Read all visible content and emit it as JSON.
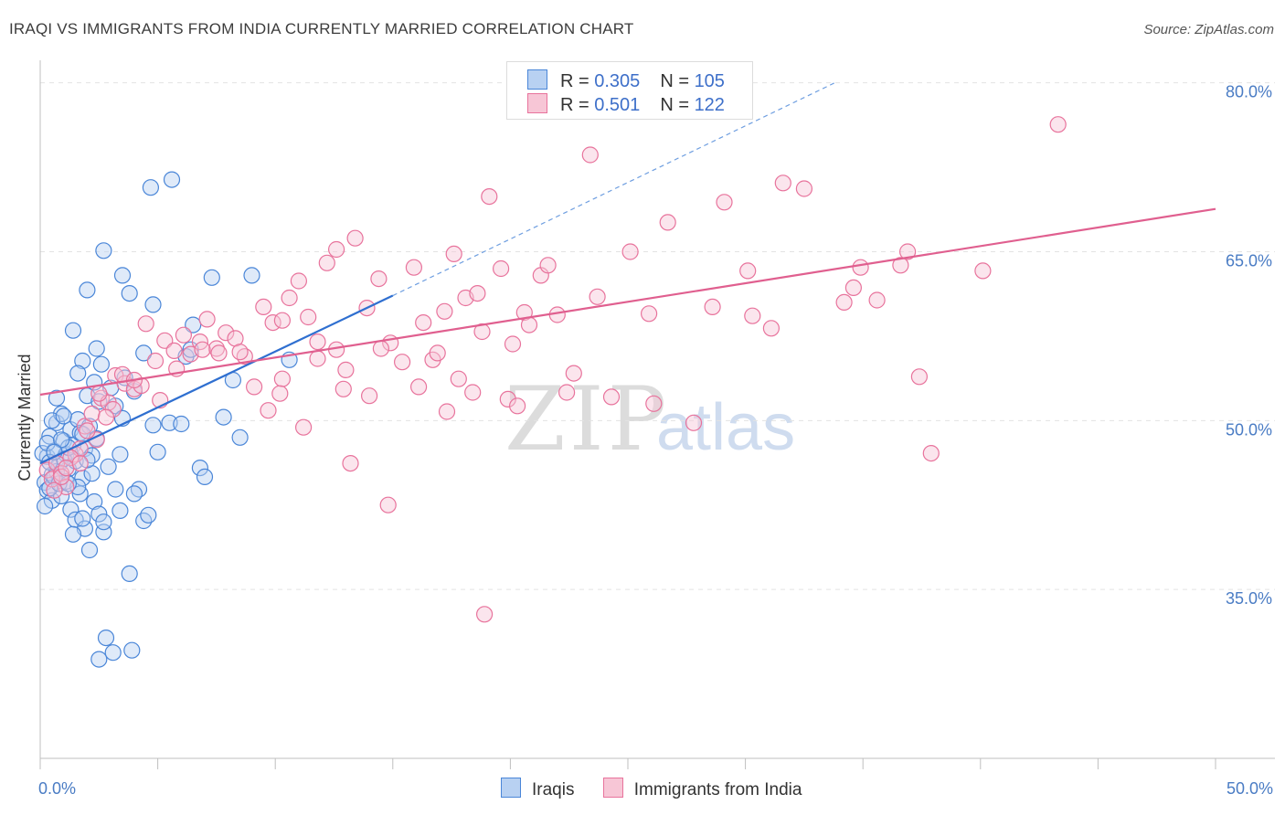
{
  "title": "IRAQI VS IMMIGRANTS FROM INDIA CURRENTLY MARRIED CORRELATION CHART",
  "source": "Source: ZipAtlas.com",
  "watermark": {
    "zip": "ZIP",
    "atlas": "atlas"
  },
  "colors": {
    "blue": "#4a86d8",
    "blue_fill": "#b8d1f2",
    "pink": "#e8739c",
    "pink_fill": "#f7c6d6",
    "axis_text": "#4a7cc4"
  },
  "legend": {
    "rows": [
      {
        "r_label": "R = ",
        "r_value": "0.305",
        "n_label": "N = ",
        "n_value": "105"
      },
      {
        "r_label": "R = ",
        "r_value": "0.501",
        "n_label": "N = ",
        "n_value": "122"
      }
    ]
  },
  "bottom_legend": [
    "Iraqis",
    "Immigrants from India"
  ],
  "chart_data": {
    "type": "scatter",
    "title": "IRAQI VS IMMIGRANTS FROM INDIA CURRENTLY MARRIED CORRELATION CHART",
    "xlabel": "",
    "ylabel": "Currently Married",
    "xlim": [
      0,
      50
    ],
    "ylim": [
      20,
      82
    ],
    "x_tick_labels": [
      "0.0%",
      "50.0%"
    ],
    "y_ticks": [
      35,
      50,
      65,
      80
    ],
    "y_tick_labels": [
      "35.0%",
      "50.0%",
      "65.0%",
      "80.0%"
    ],
    "series": [
      {
        "name": "Iraqis",
        "color": "#4a86d8",
        "trend": {
          "x": [
            0,
            15
          ],
          "y": [
            46.2,
            61.1
          ]
        },
        "trend_extension": {
          "x": [
            15,
            33.8
          ],
          "y": [
            61.1,
            80.0
          ]
        },
        "points": [
          [
            0.2,
            44.5
          ],
          [
            0.3,
            46.8
          ],
          [
            0.4,
            48.6
          ],
          [
            0.5,
            45.2
          ],
          [
            0.6,
            47.3
          ],
          [
            0.7,
            49.8
          ],
          [
            0.8,
            46.1
          ],
          [
            0.9,
            50.6
          ],
          [
            1.0,
            48.2
          ],
          [
            1.1,
            47.0
          ],
          [
            1.2,
            45.7
          ],
          [
            1.3,
            49.2
          ],
          [
            1.4,
            47.8
          ],
          [
            1.5,
            46.4
          ],
          [
            1.6,
            50.1
          ],
          [
            1.7,
            48.9
          ],
          [
            1.8,
            44.9
          ],
          [
            1.9,
            47.5
          ],
          [
            2.0,
            52.2
          ],
          [
            2.1,
            49.5
          ],
          [
            2.2,
            46.9
          ],
          [
            2.3,
            53.4
          ],
          [
            2.4,
            48.4
          ],
          [
            2.5,
            51.7
          ],
          [
            0.3,
            43.8
          ],
          [
            0.5,
            42.9
          ],
          [
            0.7,
            45.5
          ],
          [
            0.9,
            43.3
          ],
          [
            1.1,
            44.6
          ],
          [
            1.3,
            42.1
          ],
          [
            1.5,
            41.2
          ],
          [
            1.7,
            43.5
          ],
          [
            1.9,
            40.4
          ],
          [
            2.1,
            38.5
          ],
          [
            2.3,
            42.8
          ],
          [
            2.5,
            41.7
          ],
          [
            2.7,
            40.1
          ],
          [
            3.0,
            52.9
          ],
          [
            3.2,
            51.3
          ],
          [
            3.5,
            50.2
          ],
          [
            3.6,
            53.8
          ],
          [
            4.0,
            52.6
          ],
          [
            4.4,
            56.0
          ],
          [
            4.8,
            49.6
          ],
          [
            5.0,
            47.2
          ],
          [
            5.5,
            49.8
          ],
          [
            6.2,
            55.7
          ],
          [
            6.4,
            56.3
          ],
          [
            6.8,
            45.8
          ],
          [
            7.0,
            45.0
          ],
          [
            7.8,
            50.3
          ],
          [
            8.5,
            48.5
          ],
          [
            8.2,
            53.6
          ],
          [
            9.0,
            62.9
          ],
          [
            10.6,
            55.4
          ],
          [
            1.8,
            55.3
          ],
          [
            1.4,
            58.0
          ],
          [
            1.6,
            54.2
          ],
          [
            2.0,
            61.6
          ],
          [
            2.4,
            56.4
          ],
          [
            2.6,
            55.0
          ],
          [
            2.7,
            65.1
          ],
          [
            3.5,
            62.9
          ],
          [
            3.8,
            61.3
          ],
          [
            4.8,
            60.3
          ],
          [
            5.6,
            71.4
          ],
          [
            4.7,
            70.7
          ],
          [
            1.4,
            39.9
          ],
          [
            1.6,
            44.1
          ],
          [
            1.8,
            41.3
          ],
          [
            2.7,
            41.0
          ],
          [
            2.8,
            30.7
          ],
          [
            3.1,
            29.4
          ],
          [
            3.9,
            29.6
          ],
          [
            3.8,
            36.4
          ],
          [
            4.2,
            43.9
          ],
          [
            4.4,
            41.1
          ],
          [
            4.6,
            41.6
          ],
          [
            4.0,
            43.5
          ],
          [
            3.2,
            43.9
          ],
          [
            3.4,
            42.0
          ],
          [
            0.2,
            42.4
          ],
          [
            0.4,
            44.0
          ],
          [
            0.6,
            45.0
          ],
          [
            0.8,
            44.4
          ],
          [
            1.0,
            46.6
          ],
          [
            1.2,
            47.6
          ],
          [
            0.1,
            47.1
          ],
          [
            0.3,
            48.0
          ],
          [
            0.5,
            50.0
          ],
          [
            0.7,
            52.0
          ],
          [
            0.9,
            48.3
          ],
          [
            1.0,
            50.4
          ],
          [
            2.9,
            45.9
          ],
          [
            3.4,
            47.0
          ],
          [
            2.2,
            45.3
          ],
          [
            2.0,
            46.5
          ],
          [
            1.8,
            48.8
          ],
          [
            0.4,
            46.3
          ],
          [
            0.6,
            47.2
          ],
          [
            1.2,
            44.4
          ],
          [
            2.5,
            28.8
          ],
          [
            6.0,
            49.7
          ],
          [
            6.5,
            58.5
          ],
          [
            7.3,
            62.7
          ]
        ]
      },
      {
        "name": "Immigrants from India",
        "color": "#e8739c",
        "trend": {
          "x": [
            0,
            50
          ],
          "y": [
            52.3,
            68.8
          ]
        },
        "points": [
          [
            0.3,
            45.6
          ],
          [
            0.5,
            44.8
          ],
          [
            0.7,
            46.2
          ],
          [
            0.9,
            45.3
          ],
          [
            1.1,
            44.1
          ],
          [
            1.5,
            47.0
          ],
          [
            1.9,
            49.5
          ],
          [
            2.2,
            50.6
          ],
          [
            2.6,
            52.0
          ],
          [
            2.9,
            51.6
          ],
          [
            3.2,
            54.0
          ],
          [
            3.6,
            53.3
          ],
          [
            4.0,
            52.8
          ],
          [
            4.5,
            58.6
          ],
          [
            4.9,
            55.3
          ],
          [
            5.3,
            57.1
          ],
          [
            5.7,
            56.2
          ],
          [
            6.1,
            57.6
          ],
          [
            6.4,
            55.9
          ],
          [
            6.8,
            57.0
          ],
          [
            7.1,
            59.0
          ],
          [
            7.5,
            56.4
          ],
          [
            7.9,
            57.8
          ],
          [
            8.3,
            57.3
          ],
          [
            8.7,
            55.7
          ],
          [
            9.1,
            53.0
          ],
          [
            9.5,
            60.1
          ],
          [
            9.9,
            58.7
          ],
          [
            10.3,
            58.9
          ],
          [
            10.6,
            60.9
          ],
          [
            11.0,
            62.4
          ],
          [
            11.4,
            59.2
          ],
          [
            11.8,
            55.5
          ],
          [
            12.2,
            64.0
          ],
          [
            12.6,
            65.2
          ],
          [
            13.0,
            54.5
          ],
          [
            13.4,
            66.2
          ],
          [
            13.9,
            60.0
          ],
          [
            14.4,
            62.6
          ],
          [
            14.9,
            56.9
          ],
          [
            15.4,
            55.2
          ],
          [
            15.9,
            63.6
          ],
          [
            16.3,
            58.7
          ],
          [
            16.7,
            55.4
          ],
          [
            17.2,
            59.7
          ],
          [
            17.6,
            64.8
          ],
          [
            18.1,
            60.9
          ],
          [
            18.6,
            61.3
          ],
          [
            19.1,
            69.9
          ],
          [
            19.6,
            63.5
          ],
          [
            20.1,
            56.8
          ],
          [
            20.6,
            59.6
          ],
          [
            21.3,
            62.9
          ],
          [
            22.0,
            59.4
          ],
          [
            22.7,
            54.2
          ],
          [
            23.4,
            73.6
          ],
          [
            23.7,
            61.0
          ],
          [
            24.3,
            52.1
          ],
          [
            25.1,
            65.0
          ],
          [
            25.9,
            59.5
          ],
          [
            26.1,
            51.5
          ],
          [
            26.7,
            67.6
          ],
          [
            27.8,
            49.8
          ],
          [
            28.6,
            60.1
          ],
          [
            29.1,
            69.4
          ],
          [
            30.1,
            63.3
          ],
          [
            30.3,
            59.3
          ],
          [
            31.1,
            58.2
          ],
          [
            31.6,
            71.1
          ],
          [
            32.5,
            70.6
          ],
          [
            34.2,
            60.5
          ],
          [
            34.6,
            61.8
          ],
          [
            34.9,
            63.6
          ],
          [
            35.6,
            60.7
          ],
          [
            36.6,
            63.8
          ],
          [
            36.9,
            65.0
          ],
          [
            37.4,
            53.9
          ],
          [
            37.9,
            47.1
          ],
          [
            40.1,
            63.3
          ],
          [
            43.3,
            76.3
          ],
          [
            10.3,
            53.7
          ],
          [
            5.1,
            51.8
          ],
          [
            4.3,
            53.1
          ],
          [
            2.4,
            48.3
          ],
          [
            3.1,
            51.0
          ],
          [
            1.7,
            47.5
          ],
          [
            2.0,
            49.1
          ],
          [
            1.3,
            46.7
          ],
          [
            2.8,
            50.3
          ],
          [
            0.6,
            43.8
          ],
          [
            0.9,
            45.0
          ],
          [
            1.1,
            45.8
          ],
          [
            1.7,
            46.2
          ],
          [
            2.5,
            52.4
          ],
          [
            3.5,
            54.1
          ],
          [
            4.0,
            53.6
          ],
          [
            5.8,
            54.6
          ],
          [
            6.9,
            56.3
          ],
          [
            7.6,
            56.0
          ],
          [
            8.5,
            56.1
          ],
          [
            9.7,
            50.9
          ],
          [
            10.2,
            52.4
          ],
          [
            11.2,
            49.4
          ],
          [
            11.8,
            57.0
          ],
          [
            12.6,
            56.3
          ],
          [
            12.9,
            52.8
          ],
          [
            13.2,
            46.2
          ],
          [
            14.0,
            52.2
          ],
          [
            14.5,
            56.4
          ],
          [
            14.8,
            42.5
          ],
          [
            16.1,
            53.0
          ],
          [
            16.9,
            56.0
          ],
          [
            17.3,
            50.8
          ],
          [
            17.8,
            53.7
          ],
          [
            18.4,
            52.5
          ],
          [
            18.8,
            57.9
          ],
          [
            19.9,
            51.9
          ],
          [
            20.3,
            51.3
          ],
          [
            20.8,
            58.5
          ],
          [
            21.6,
            63.8
          ],
          [
            22.4,
            52.5
          ],
          [
            18.9,
            32.8
          ]
        ]
      }
    ]
  }
}
